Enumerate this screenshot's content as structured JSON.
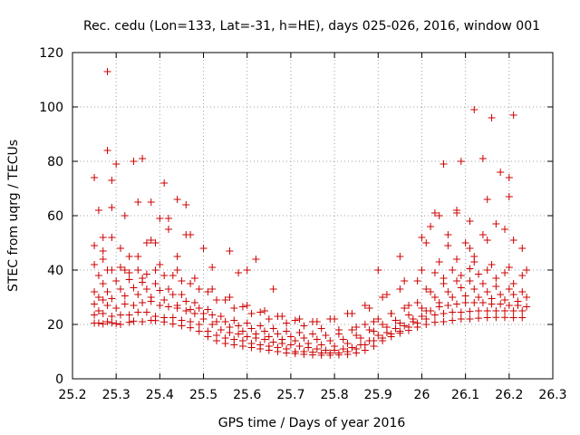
{
  "chart_data": {
    "type": "scatter",
    "title": "Rec. cedu (Lon=133, Lat=-31, h=HE), days 025-026, 2016, window 001",
    "xlabel": "GPS time / Days of year 2016",
    "ylabel": "STEC from uqrg / TECUs",
    "xlim": [
      25.2,
      26.3
    ],
    "ylim": [
      0,
      120
    ],
    "xticks": [
      25.2,
      25.3,
      25.4,
      25.5,
      25.6,
      25.7,
      25.8,
      25.9,
      26,
      26.1,
      26.2,
      26.3
    ],
    "xtick_labels": [
      "25.2",
      "25.3",
      "25.4",
      "25.5",
      "25.6",
      "25.7",
      "25.8",
      "25.9",
      "26",
      "26.1",
      "26.2",
      "26.3"
    ],
    "yticks": [
      0,
      20,
      40,
      60,
      80,
      100,
      120
    ],
    "ytick_labels": [
      "0",
      "20",
      "40",
      "60",
      "80",
      "100",
      "120"
    ],
    "grid": true,
    "marker": "+",
    "series": [
      {
        "name": "STEC",
        "color": "#cc0000",
        "x": [
          25.25,
          25.26,
          25.27,
          25.28,
          25.29,
          25.3,
          25.31,
          25.33,
          25.34,
          25.36,
          25.38,
          25.39,
          25.41,
          25.43,
          25.45,
          25.47,
          25.49,
          25.51,
          25.53,
          25.55,
          25.57,
          25.59,
          25.61,
          25.63,
          25.65,
          25.67,
          25.69,
          25.71,
          25.73,
          25.75,
          25.77,
          25.79,
          25.81,
          25.83,
          25.85,
          25.87,
          25.89,
          25.91,
          25.93,
          25.95,
          25.97,
          25.99,
          26.01,
          26.03,
          26.05,
          26.07,
          26.09,
          26.11,
          26.13,
          26.15,
          26.17,
          26.19,
          26.21,
          26.23,
          25.25,
          25.27,
          25.29,
          25.31,
          25.33,
          25.35,
          25.37,
          25.39,
          25.41,
          25.43,
          25.45,
          25.47,
          25.49,
          25.51,
          25.53,
          25.55,
          25.57,
          25.59,
          25.61,
          25.63,
          25.65,
          25.67,
          25.69,
          25.71,
          25.73,
          25.75,
          25.77,
          25.79,
          25.81,
          25.83,
          25.85,
          25.87,
          25.89,
          25.91,
          25.93,
          25.95,
          25.97,
          25.99,
          26.01,
          26.03,
          26.05,
          26.07,
          26.09,
          26.11,
          26.13,
          26.15,
          26.17,
          26.19,
          26.21,
          26.23,
          25.26,
          25.28,
          25.3,
          25.32,
          25.34,
          25.36,
          25.38,
          25.4,
          25.42,
          25.44,
          25.46,
          25.48,
          25.5,
          25.52,
          25.54,
          25.56,
          25.58,
          25.6,
          25.62,
          25.64,
          25.66,
          25.68,
          25.7,
          25.72,
          25.74,
          25.76,
          25.78,
          25.8,
          25.82,
          25.84,
          25.86,
          25.88,
          25.9,
          25.92,
          25.94,
          25.96,
          25.98,
          26.0,
          26.02,
          26.04,
          26.06,
          26.08,
          26.1,
          26.12,
          26.14,
          26.16,
          26.18,
          26.2,
          26.22,
          26.24,
          25.25,
          25.27,
          25.29,
          25.32,
          25.35,
          25.38,
          25.41,
          25.44,
          25.47,
          25.5,
          25.53,
          25.56,
          25.59,
          25.62,
          25.65,
          25.68,
          25.71,
          25.74,
          25.77,
          25.8,
          25.83,
          25.86,
          25.89,
          25.92,
          25.95,
          25.98,
          26.01,
          26.04,
          26.07,
          26.1,
          26.13,
          26.16,
          26.19,
          26.22,
          25.26,
          25.28,
          25.31,
          25.34,
          25.37,
          25.4,
          25.43,
          25.46,
          25.49,
          25.52,
          25.55,
          25.58,
          25.61,
          25.64,
          25.67,
          25.7,
          25.73,
          25.76,
          25.79,
          25.82,
          25.85,
          25.88,
          25.91,
          25.94,
          25.97,
          26.0,
          26.03,
          26.06,
          26.09,
          26.12,
          26.15,
          26.18,
          26.21,
          26.24,
          25.25,
          25.27,
          25.3,
          25.33,
          25.36,
          25.39,
          25.42,
          25.45,
          25.48,
          25.51,
          25.54,
          25.57,
          25.6,
          25.63,
          25.66,
          25.69,
          25.72,
          25.75,
          25.78,
          25.81,
          25.84,
          25.87,
          25.9,
          25.93,
          25.96,
          25.99,
          26.02,
          26.05,
          26.08,
          26.11,
          26.14,
          26.17,
          26.2,
          26.23,
          25.26,
          25.29,
          25.33,
          25.37,
          25.41,
          25.45,
          25.49,
          25.53,
          25.57,
          25.61,
          25.65,
          25.69,
          25.73,
          25.77,
          25.81,
          25.85,
          25.89,
          25.93,
          25.97,
          26.01,
          26.05,
          26.09,
          26.13,
          26.17,
          26.21,
          25.25,
          25.27,
          25.31,
          25.35,
          25.39,
          25.43,
          25.47,
          25.51,
          25.55,
          25.59,
          25.63,
          25.67,
          25.71,
          25.75,
          25.79,
          25.83,
          25.87,
          25.91,
          25.95,
          25.99,
          26.03,
          26.07,
          26.11,
          26.15,
          26.19,
          26.23,
          25.28,
          25.32,
          25.36,
          25.4,
          25.44,
          25.48,
          25.52,
          25.56,
          25.6,
          25.64,
          25.68,
          25.72,
          25.76,
          25.8,
          25.84,
          25.88,
          25.92,
          25.96,
          26.0,
          26.04,
          26.08,
          26.12,
          26.16,
          26.2,
          26.24,
          25.25,
          25.26,
          25.27,
          25.29,
          25.3,
          25.32,
          25.34,
          25.35,
          25.36,
          25.38,
          25.39,
          25.4,
          25.41,
          25.42,
          25.44,
          25.46,
          25.47,
          25.5,
          25.6,
          25.9,
          25.95,
          26.0,
          26.02,
          26.03,
          26.05,
          26.06,
          26.08,
          26.09,
          26.11,
          26.12,
          26.14,
          26.15,
          26.16,
          26.18,
          26.2,
          26.21,
          26.23,
          25.25,
          25.27,
          25.28,
          25.28,
          25.29,
          25.29,
          25.31,
          25.33,
          25.35,
          25.37,
          25.38,
          25.42,
          25.44,
          25.46,
          25.52,
          25.56,
          25.58,
          25.62,
          25.66,
          26.01,
          26.04,
          26.06,
          26.08,
          26.1,
          26.11,
          26.12,
          26.14,
          26.15,
          26.17,
          26.19,
          26.2,
          26.21
        ],
        "y": [
          20.5,
          20.5,
          20.2,
          21.0,
          20.6,
          20.3,
          20.0,
          20.8,
          21.2,
          21.0,
          21.5,
          21.4,
          20.9,
          20.2,
          19.5,
          18.8,
          17.5,
          15.5,
          14.0,
          13.0,
          12.5,
          12.0,
          11.5,
          11.0,
          10.5,
          10.0,
          9.5,
          9.3,
          9.0,
          8.8,
          8.7,
          8.7,
          8.8,
          9.0,
          9.5,
          10.5,
          12.0,
          14.0,
          15.5,
          16.8,
          17.8,
          19.0,
          20.0,
          20.8,
          21.0,
          21.5,
          22.0,
          22.0,
          22.3,
          22.5,
          22.6,
          22.6,
          22.5,
          22.5,
          23.5,
          24.0,
          23.0,
          23.5,
          23.5,
          24.5,
          24.5,
          23.0,
          22.5,
          22.5,
          21.5,
          21.0,
          20.0,
          17.5,
          16.0,
          15.0,
          14.5,
          14.0,
          13.0,
          12.5,
          12.0,
          11.5,
          11.0,
          10.0,
          10.0,
          9.8,
          9.5,
          9.5,
          9.5,
          10.0,
          11.0,
          12.5,
          14.0,
          15.0,
          16.5,
          17.5,
          19.0,
          20.5,
          22.0,
          23.5,
          24.0,
          24.5,
          24.5,
          24.8,
          25.0,
          25.0,
          25.0,
          25.0,
          25.0,
          25.0,
          25.0,
          27.0,
          26.0,
          27.5,
          27.0,
          28.0,
          28.5,
          27.0,
          26.5,
          26.0,
          25.0,
          24.0,
          22.0,
          20.0,
          18.0,
          17.0,
          16.5,
          15.5,
          15.0,
          14.5,
          13.5,
          13.0,
          12.5,
          12.0,
          11.5,
          11.0,
          10.5,
          10.5,
          11.0,
          11.5,
          12.5,
          14.0,
          16.0,
          17.0,
          18.5,
          19.5,
          21.0,
          23.0,
          25.0,
          26.5,
          27.0,
          27.5,
          28.0,
          28.0,
          28.0,
          27.5,
          27.5,
          27.0,
          27.0,
          26.5,
          27.5,
          29.0,
          29.5,
          30.5,
          31.0,
          30.0,
          29.0,
          27.0,
          25.5,
          24.0,
          21.0,
          19.0,
          17.5,
          16.5,
          15.5,
          14.5,
          14.0,
          13.0,
          12.5,
          12.0,
          13.0,
          15.0,
          17.5,
          19.0,
          20.5,
          22.0,
          25.0,
          28.0,
          30.0,
          30.5,
          30.0,
          29.5,
          29.0,
          28.5,
          30.0,
          32.0,
          33.0,
          33.5,
          33.0,
          32.5,
          31.0,
          28.5,
          26.0,
          23.5,
          21.0,
          19.5,
          18.5,
          17.5,
          16.5,
          15.5,
          15.0,
          14.5,
          14.0,
          14.5,
          16.0,
          18.0,
          20.0,
          21.5,
          23.5,
          26.0,
          30.0,
          32.0,
          33.5,
          33.0,
          32.0,
          31.0,
          31.0,
          30.0,
          32.0,
          35.0,
          36.0,
          36.5,
          35.5,
          35.0,
          33.0,
          31.0,
          28.0,
          25.5,
          23.0,
          21.5,
          20.5,
          19.5,
          18.5,
          17.5,
          17.0,
          16.5,
          16.0,
          16.5,
          18.0,
          20.0,
          22.0,
          24.0,
          26.0,
          28.0,
          32.0,
          35.0,
          36.0,
          36.0,
          35.0,
          34.0,
          33.0,
          32.0,
          38.0,
          40.0,
          39.0,
          38.5,
          38.0,
          36.0,
          33.0,
          29.0,
          26.0,
          24.0,
          22.0,
          20.5,
          19.5,
          18.5,
          18.0,
          19.0,
          21.0,
          24.0,
          27.0,
          33.0,
          37.0,
          38.0,
          38.5,
          37.0,
          35.0,
          42.0,
          44.0,
          41.0,
          40.0,
          40.0,
          38.0,
          35.0,
          32.0,
          29.0,
          26.5,
          24.5,
          23.0,
          21.5,
          21.0,
          22.0,
          24.0,
          27.0,
          30.0,
          33.0,
          36.0,
          39.0,
          40.0,
          40.5,
          40.0,
          39.0,
          38.0,
          40.0,
          40.0,
          37.0,
          42.0,
          40.0,
          37.0,
          33.0,
          30.0,
          27.0,
          25.0,
          23.0,
          22.0,
          21.0,
          22.0,
          24.0,
          26.0,
          31.0,
          36.0,
          40.0,
          43.0,
          44.0,
          43.0,
          42.0,
          41.0,
          40.0,
          74.0,
          62.0,
          52.0,
          63.0,
          79.0,
          60.0,
          80.0,
          65.0,
          81.0,
          65.0,
          50.0,
          59.0,
          72.0,
          59.0,
          66.0,
          64.0,
          53.0,
          48.0,
          40.0,
          40.0,
          45.0,
          52.0,
          56.0,
          61.0,
          79.0,
          53.0,
          61.0,
          80.0,
          58.0,
          99.0,
          81.0,
          66.0,
          96.0,
          76.0,
          74.0,
          97.0,
          48.0,
          49.0,
          47.0,
          113.0,
          84.0,
          73.0,
          52.0,
          48.0,
          45.0,
          45.0,
          50.0,
          51.0,
          55.0,
          45.0,
          53.0,
          41.0,
          47.0,
          39.0,
          44.0,
          33.0,
          50.0,
          60.0,
          49.0,
          62.0,
          50.0,
          48.0,
          45.0,
          53.0,
          51.0,
          57.0,
          55.0,
          67.0,
          51.0
        ]
      }
    ]
  }
}
